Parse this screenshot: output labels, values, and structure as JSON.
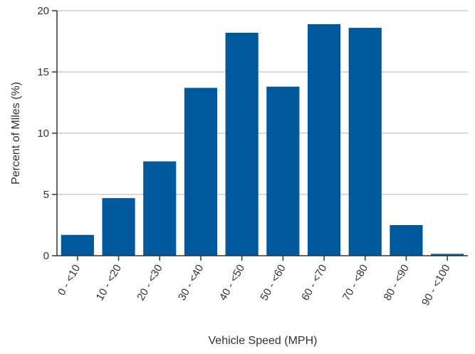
{
  "chart_data": {
    "type": "bar",
    "title": "",
    "xlabel": "Vehicle Speed (MPH)",
    "ylabel": "Percent of Mlles (%)",
    "categories": [
      "0 - <10",
      "10 - <20",
      "20 - <30",
      "30 - <40",
      "40 - <50",
      "50 - <60",
      "60 - <70",
      "70 - <80",
      "80 - <90",
      "90 - <100"
    ],
    "values": [
      1.7,
      4.7,
      7.7,
      13.7,
      18.2,
      13.8,
      18.9,
      18.6,
      2.5,
      0.15
    ],
    "ylim": [
      0,
      20
    ],
    "yticks": [
      "0",
      "5",
      "10",
      "15",
      "20"
    ],
    "grid": "horizontal",
    "legend": "none",
    "bar_color": "#00599c",
    "grid_color": "#d9d9d9",
    "axis_color": "#333333"
  }
}
